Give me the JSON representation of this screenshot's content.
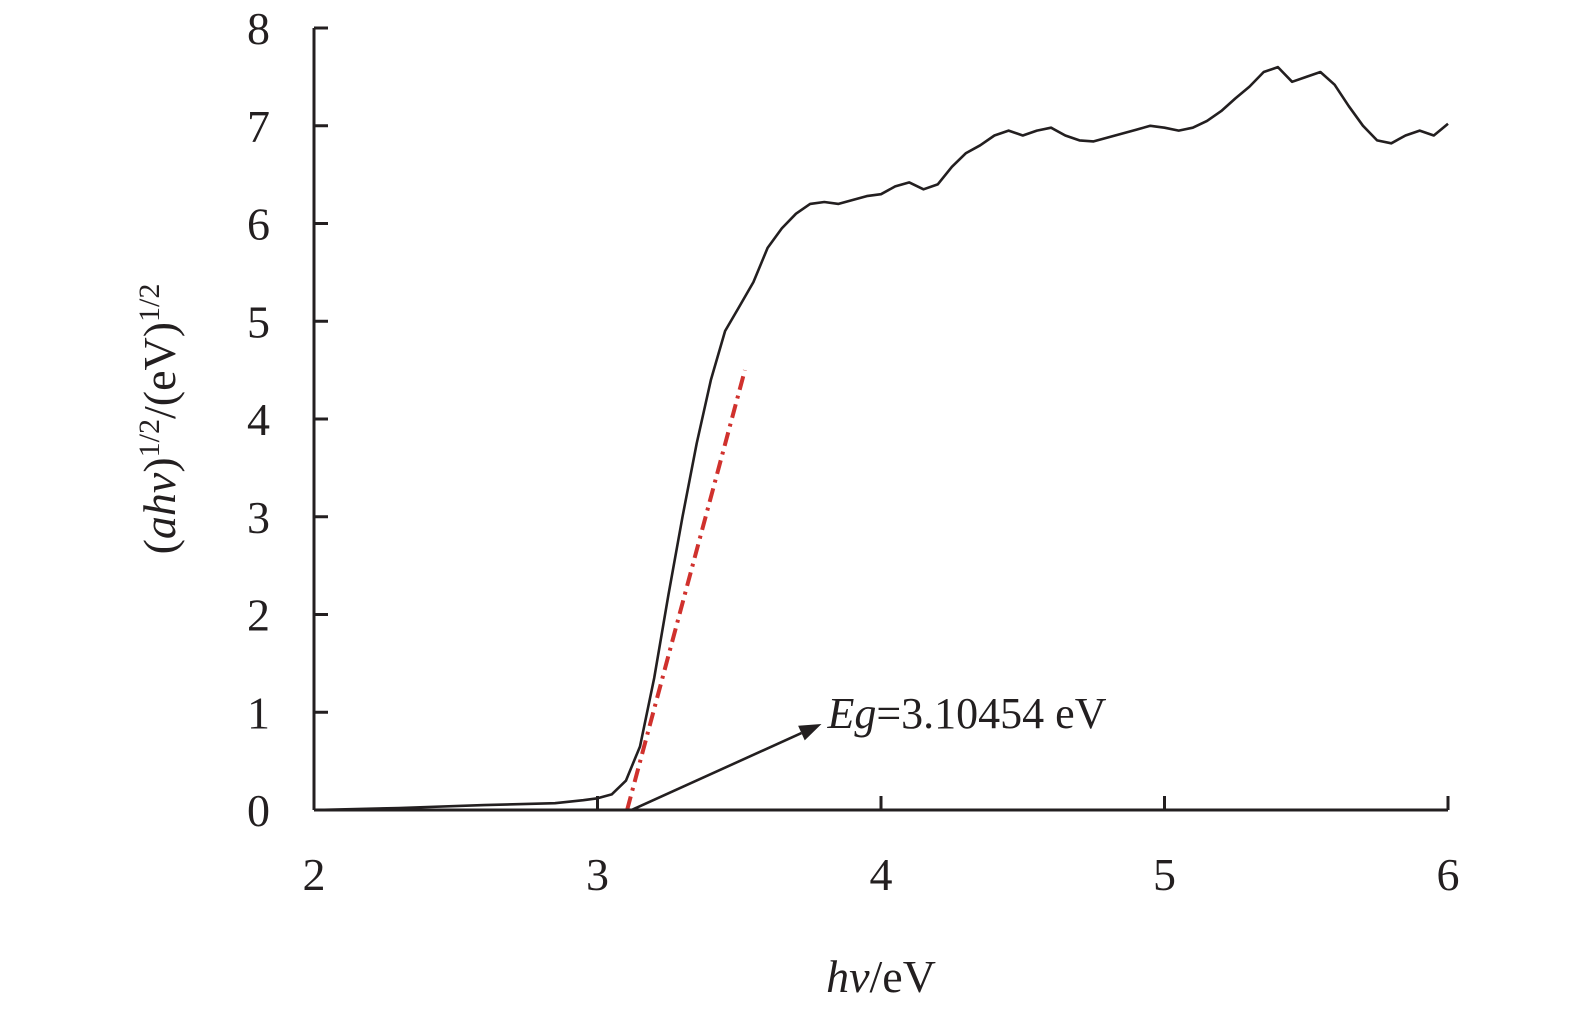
{
  "chart_data": {
    "type": "line",
    "xlim": [
      2,
      6
    ],
    "ylim": [
      0,
      8
    ],
    "x_ticks": [
      2,
      3,
      4,
      5,
      6
    ],
    "y_ticks": [
      0,
      1,
      2,
      3,
      4,
      5,
      6,
      7,
      8
    ],
    "grid": false,
    "xlabel": {
      "italic": "hv",
      "plain": "/eV"
    },
    "ylabel": {
      "open": "(",
      "italic": "ahv",
      "close": ")",
      "sup1": "1/2",
      "mid": "/(eV)",
      "sup2": "1/2"
    },
    "colors": {
      "curve": "#231f20",
      "fit": "#d0312d",
      "axis": "#231f20"
    },
    "series": [
      {
        "style": "solid",
        "x": [
          2.0,
          2.3,
          2.6,
          2.85,
          2.95,
          3.0,
          3.05,
          3.1,
          3.15,
          3.2,
          3.25,
          3.3,
          3.35,
          3.4,
          3.45,
          3.5,
          3.55,
          3.6,
          3.65,
          3.7,
          3.75,
          3.8,
          3.85,
          3.9,
          3.95,
          4.0,
          4.05,
          4.1,
          4.15,
          4.2,
          4.25,
          4.3,
          4.35,
          4.4,
          4.45,
          4.5,
          4.55,
          4.6,
          4.65,
          4.7,
          4.75,
          4.8,
          4.85,
          4.9,
          4.95,
          5.0,
          5.05,
          5.1,
          5.15,
          5.2,
          5.25,
          5.3,
          5.35,
          5.4,
          5.45,
          5.5,
          5.55,
          5.6,
          5.65,
          5.7,
          5.75,
          5.8,
          5.85,
          5.9,
          5.95,
          6.0
        ],
        "y": [
          0.0,
          0.02,
          0.05,
          0.07,
          0.1,
          0.12,
          0.16,
          0.3,
          0.65,
          1.35,
          2.2,
          3.0,
          3.75,
          4.4,
          4.9,
          5.15,
          5.4,
          5.75,
          5.95,
          6.1,
          6.2,
          6.22,
          6.2,
          6.24,
          6.28,
          6.3,
          6.38,
          6.42,
          6.35,
          6.4,
          6.58,
          6.72,
          6.8,
          6.9,
          6.95,
          6.9,
          6.95,
          6.98,
          6.9,
          6.85,
          6.84,
          6.88,
          6.92,
          6.96,
          7.0,
          6.98,
          6.95,
          6.98,
          7.05,
          7.15,
          7.28,
          7.4,
          7.55,
          7.6,
          7.45,
          7.5,
          7.55,
          7.42,
          7.2,
          7.0,
          6.85,
          6.82,
          6.9,
          6.95,
          6.9,
          7.02
        ]
      },
      {
        "style": "dash-dot",
        "x": [
          3.10454,
          3.52
        ],
        "y": [
          0,
          4.5
        ]
      }
    ],
    "annotation": {
      "italic": "Eg",
      "text": "=3.10454 eV",
      "arrow_from": [
        3.12,
        0
      ],
      "arrow_to": [
        3.79,
        0.88
      ]
    }
  }
}
